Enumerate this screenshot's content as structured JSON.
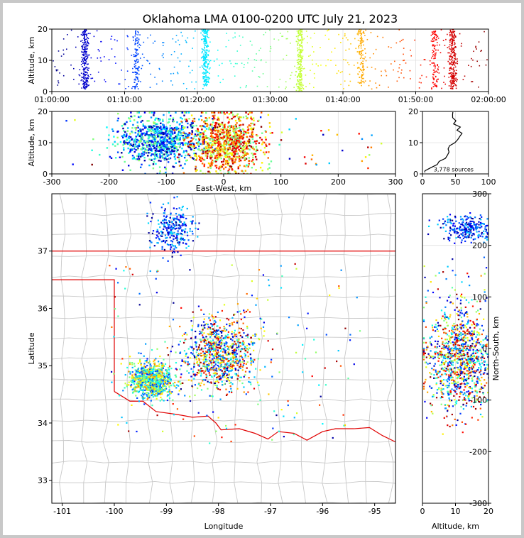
{
  "chart_data": [
    {
      "panel": "altitude-time",
      "type": "scatter",
      "title": "Oklahoma LMA 0100-0200 UTC July 21, 2023",
      "ylabel": "Altitude, km",
      "xlim": [
        "01:00:00",
        "02:00:00"
      ],
      "ylim": [
        0,
        20
      ],
      "x_tick_labels": [
        "01:00:00",
        "01:10:00",
        "01:20:00",
        "01:30:00",
        "01:40:00",
        "01:50:00",
        "02:00:00"
      ],
      "y_ticks": [
        0,
        10,
        20
      ],
      "color_by": "time",
      "grid": true,
      "activity_bursts": [
        {
          "time": "01:04:30",
          "alt_min": 1,
          "alt_max": 20,
          "density": "high"
        },
        {
          "time": "01:11:30",
          "alt_min": 1,
          "alt_max": 20,
          "density": "medium"
        },
        {
          "time": "01:21:00",
          "alt_min": 2,
          "alt_max": 20,
          "density": "high"
        },
        {
          "time": "01:34:00",
          "alt_min": 0,
          "alt_max": 20,
          "density": "high"
        },
        {
          "time": "01:42:30",
          "alt_min": 2,
          "alt_max": 20,
          "density": "medium"
        },
        {
          "time": "01:52:30",
          "alt_min": 1,
          "alt_max": 20,
          "density": "medium"
        },
        {
          "time": "01:55:00",
          "alt_min": 1,
          "alt_max": 20,
          "density": "high"
        }
      ]
    },
    {
      "panel": "altitude-eastwest",
      "type": "scatter",
      "xlabel": "East-West, km",
      "ylabel": "Altitude, km",
      "xlim": [
        -300,
        300
      ],
      "ylim": [
        0,
        20
      ],
      "x_ticks": [
        -300,
        -200,
        -100,
        0,
        100,
        200,
        300
      ],
      "y_ticks": [
        0,
        10,
        20
      ],
      "clusters": [
        {
          "x_center": -110,
          "x_spread": 40,
          "alt_center": 11,
          "alt_spread": 5
        },
        {
          "x_center": 5,
          "x_spread": 35,
          "alt_center": 10,
          "alt_spread": 6
        }
      ]
    },
    {
      "panel": "altitude-histogram",
      "type": "line",
      "ylim": [
        0,
        20
      ],
      "xlim": [
        0,
        100
      ],
      "x_ticks": [
        0,
        50,
        100
      ],
      "y_ticks": [
        0,
        10,
        20
      ],
      "annotation": "3,778 sources",
      "profile": [
        {
          "alt": 0.5,
          "count": 2
        },
        {
          "alt": 1,
          "count": 5
        },
        {
          "alt": 2,
          "count": 10
        },
        {
          "alt": 3,
          "count": 20
        },
        {
          "alt": 4,
          "count": 28
        },
        {
          "alt": 5,
          "count": 32
        },
        {
          "alt": 6,
          "count": 38
        },
        {
          "alt": 7,
          "count": 42
        },
        {
          "alt": 8,
          "count": 40
        },
        {
          "alt": 9,
          "count": 42
        },
        {
          "alt": 10,
          "count": 48
        },
        {
          "alt": 11,
          "count": 52
        },
        {
          "alt": 12,
          "count": 55
        },
        {
          "alt": 13,
          "count": 60
        },
        {
          "alt": 14,
          "count": 55
        },
        {
          "alt": 15,
          "count": 58
        },
        {
          "alt": 16,
          "count": 50
        },
        {
          "alt": 17,
          "count": 52
        },
        {
          "alt": 18,
          "count": 45
        },
        {
          "alt": 19,
          "count": 48
        },
        {
          "alt": 19.8,
          "count": 45
        }
      ]
    },
    {
      "panel": "plan-view",
      "type": "scatter",
      "xlabel": "Longitude",
      "ylabel": "Latitude",
      "xlim": [
        -101.2,
        -94.6
      ],
      "ylim": [
        32.6,
        38.0
      ],
      "x_ticks": [
        -101,
        -100,
        -99,
        -98,
        -97,
        -96,
        -95
      ],
      "y_ticks": [
        33,
        34,
        35,
        36,
        37
      ],
      "clusters": [
        {
          "lon": -98.0,
          "lat": 35.2,
          "spread_lon": 0.35,
          "spread_lat": 0.3,
          "density": "high"
        },
        {
          "lon": -99.3,
          "lat": 34.75,
          "spread_lon": 0.2,
          "spread_lat": 0.15,
          "density": "high"
        },
        {
          "lon": -98.9,
          "lat": 37.4,
          "spread_lon": 0.2,
          "spread_lat": 0.2,
          "density": "medium"
        }
      ],
      "ok_border": [
        [
          -103.0,
          37.0
        ],
        [
          -94.6,
          37.0
        ]
      ],
      "panhandle": [
        [
          -101.2,
          36.5
        ],
        [
          -100.0,
          36.5
        ],
        [
          -100.0,
          34.55
        ]
      ],
      "red_river": [
        [
          -100.0,
          34.55
        ],
        [
          -99.7,
          34.38
        ],
        [
          -99.45,
          34.38
        ],
        [
          -99.2,
          34.2
        ],
        [
          -98.8,
          34.15
        ],
        [
          -98.5,
          34.1
        ],
        [
          -98.2,
          34.12
        ],
        [
          -98.05,
          34.0
        ],
        [
          -97.95,
          33.88
        ],
        [
          -97.6,
          33.9
        ],
        [
          -97.3,
          33.82
        ],
        [
          -97.05,
          33.72
        ],
        [
          -96.85,
          33.85
        ],
        [
          -96.55,
          33.82
        ],
        [
          -96.3,
          33.7
        ],
        [
          -96.0,
          33.85
        ],
        [
          -95.75,
          33.9
        ],
        [
          -95.4,
          33.9
        ],
        [
          -95.1,
          33.92
        ],
        [
          -94.85,
          33.78
        ],
        [
          -94.6,
          33.67
        ]
      ]
    },
    {
      "panel": "altitude-northsouth",
      "type": "scatter",
      "xlabel": "Altitude, km",
      "ylabel": "North-South, km",
      "xlim": [
        0,
        20
      ],
      "ylim": [
        -300,
        300
      ],
      "x_ticks": [
        0,
        10,
        20
      ],
      "y_ticks": [
        -300,
        -200,
        -100,
        0,
        100,
        200,
        300
      ],
      "clusters": [
        {
          "ns_center": -20,
          "ns_spread": 60,
          "alt_center": 11,
          "alt_spread": 6
        },
        {
          "ns_center": 235,
          "ns_spread": 25,
          "alt_center": 14,
          "alt_spread": 5
        }
      ]
    }
  ]
}
